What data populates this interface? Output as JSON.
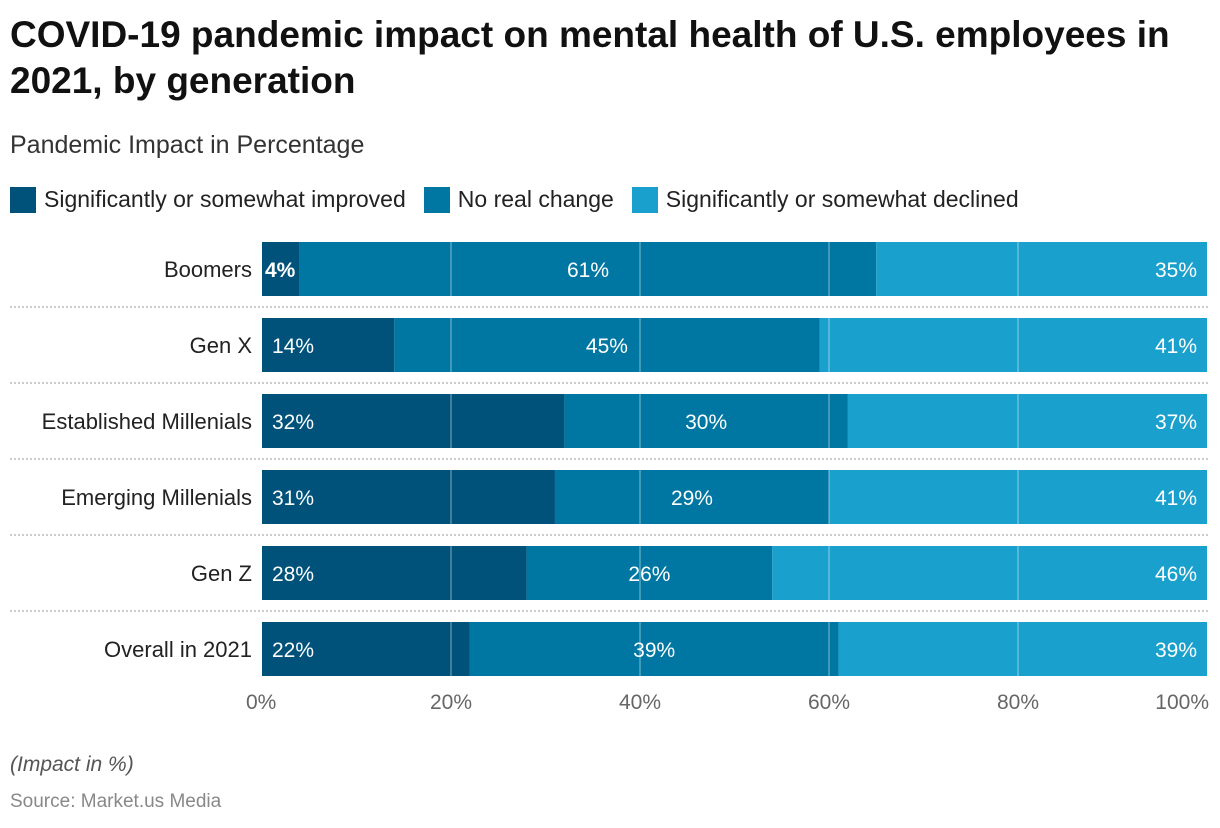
{
  "title": "COVID-19 pandemic impact on mental health of U.S. employees in 2021, by generation",
  "subtitle": "Pandemic Impact in Percentage",
  "note": "(Impact in %)",
  "source": "Source: Market.us Media",
  "chart_data": {
    "type": "bar",
    "orientation": "horizontal",
    "stacked": true,
    "categories": [
      "Boomers",
      "Gen X",
      "Established Millenials",
      "Emerging Millenials",
      "Gen Z",
      "Overall in 2021"
    ],
    "series": [
      {
        "name": "Significantly or somewhat improved",
        "color": "#00527a",
        "values": [
          4,
          14,
          32,
          31,
          28,
          22
        ]
      },
      {
        "name": "No real change",
        "color": "#0077a2",
        "values": [
          61,
          45,
          30,
          29,
          26,
          39
        ]
      },
      {
        "name": "Significantly or somewhat declined",
        "color": "#1aa0cd",
        "values": [
          35,
          41,
          37,
          41,
          46,
          39
        ]
      }
    ],
    "xlim": [
      0,
      100
    ],
    "xticks": [
      "0%",
      "20%",
      "40%",
      "60%",
      "80%",
      "100%"
    ],
    "tick_values": [
      0,
      20,
      40,
      60,
      80,
      100
    ],
    "grid": true,
    "legend": "top-left"
  }
}
